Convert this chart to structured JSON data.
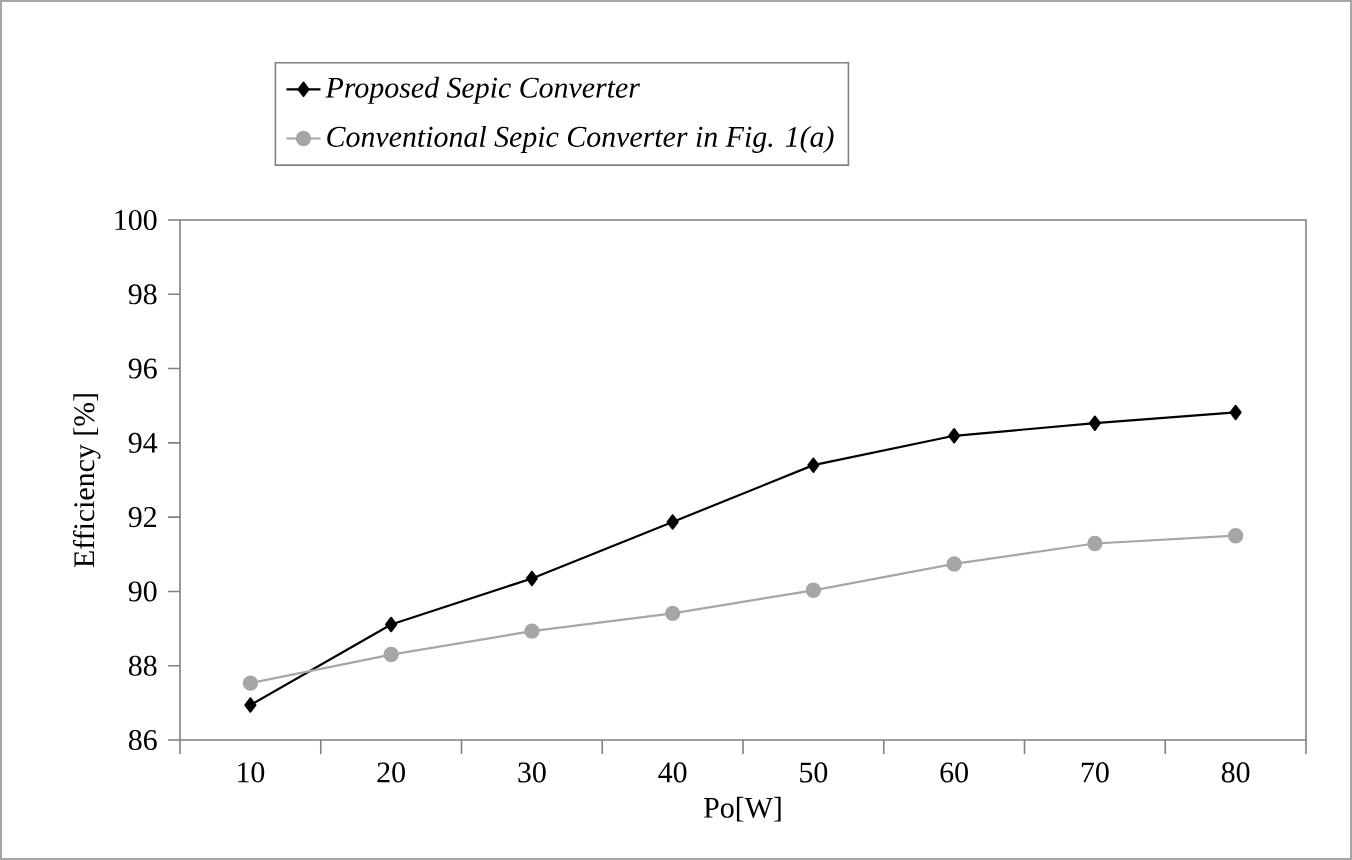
{
  "chart_data": {
    "type": "line",
    "xlabel": "Po[W]",
    "ylabel": "Efficiency [%]",
    "categories": [
      "10",
      "20",
      "30",
      "40",
      "50",
      "60",
      "70",
      "80"
    ],
    "series": [
      {
        "name": "*Proposed Sepic Converter*",
        "color": "#000000",
        "marker": "diamond",
        "values": [
          86.94,
          89.11,
          90.35,
          91.87,
          93.4,
          94.19,
          94.53,
          94.82
        ]
      },
      {
        "name": "*Conventional Sepic Converter in Fig. 1(a)*",
        "color": "#a6a6a6",
        "marker": "circle",
        "values": [
          87.53,
          88.3,
          88.93,
          89.41,
          90.03,
          90.74,
          91.29,
          91.5
        ]
      }
    ],
    "ylim": [
      86,
      100
    ],
    "yticks": [
      86,
      88,
      90,
      92,
      94,
      96,
      98,
      100
    ],
    "legend": "top",
    "grid": false,
    "line_style": "solid"
  }
}
